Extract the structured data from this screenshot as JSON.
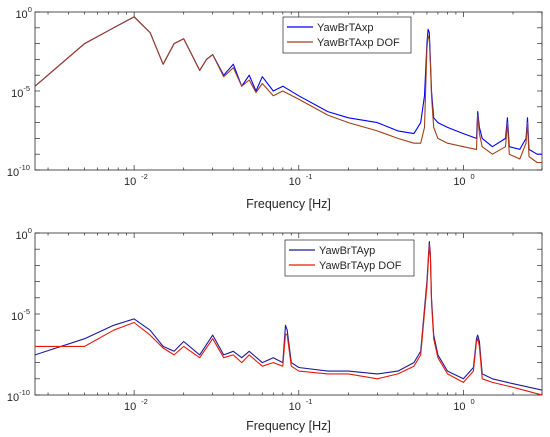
{
  "chart_data": [
    {
      "type": "line",
      "title": "",
      "xlabel": "Frequency [Hz]",
      "ylabel": "",
      "xscale": "log",
      "yscale": "log",
      "xlim": [
        0.0025,
        3
      ],
      "ylim": [
        1e-10,
        1
      ],
      "grid": false,
      "legend": "top-right",
      "x_tick_labels": [
        "10",
        "10",
        "10"
      ],
      "x_tick_exponents": [
        "-2",
        "-1",
        "0"
      ],
      "y_tick_labels": [
        "10",
        "10",
        "10"
      ],
      "y_tick_exponents": [
        "0",
        "-5",
        "-10"
      ],
      "series": [
        {
          "name": "YawBrTAxp",
          "color": "#0000ff",
          "x": [
            0.0025,
            0.005,
            0.0075,
            0.01,
            0.0125,
            0.015,
            0.0175,
            0.02,
            0.025,
            0.0275,
            0.03,
            0.035,
            0.04,
            0.045,
            0.05,
            0.055,
            0.06,
            0.07,
            0.08,
            0.1,
            0.15,
            0.2,
            0.3,
            0.4,
            0.5,
            0.55,
            0.58,
            0.6,
            0.61,
            0.62,
            0.63,
            0.64,
            0.66,
            0.7,
            0.8,
            1.0,
            1.2,
            1.22,
            1.25,
            1.3,
            1.5,
            1.8,
            1.85,
            1.9,
            2.2,
            2.4,
            2.45,
            2.5,
            2.8,
            3.0
          ],
          "y": [
            2e-05,
            0.01,
            0.1,
            0.5,
            0.05,
            0.0005,
            0.01,
            0.02,
            0.0002,
            0.001,
            0.002,
            0.0001,
            0.0005,
            2e-05,
            0.0001,
            1e-05,
            8e-05,
            1e-05,
            2e-05,
            5e-06,
            5e-07,
            2e-07,
            1e-07,
            3e-08,
            2e-08,
            1e-07,
            5e-06,
            0.01,
            0.08,
            0.05,
            0.001,
            1e-05,
            2e-07,
            1e-07,
            5e-08,
            2e-08,
            1e-08,
            5e-07,
            5e-08,
            1e-08,
            3e-09,
            1e-08,
            2e-07,
            3e-09,
            2e-09,
            1e-08,
            2e-07,
            2e-09,
            1e-09,
            1e-09
          ]
        },
        {
          "name": "YawBrTAxp DOF",
          "color": "#a0401a",
          "x": [
            0.0025,
            0.005,
            0.0075,
            0.01,
            0.0125,
            0.015,
            0.0175,
            0.02,
            0.025,
            0.0275,
            0.03,
            0.035,
            0.04,
            0.045,
            0.05,
            0.055,
            0.06,
            0.07,
            0.08,
            0.1,
            0.15,
            0.2,
            0.3,
            0.4,
            0.5,
            0.55,
            0.58,
            0.6,
            0.61,
            0.62,
            0.63,
            0.64,
            0.66,
            0.7,
            0.8,
            1.0,
            1.2,
            1.22,
            1.25,
            1.3,
            1.5,
            1.8,
            1.85,
            1.9,
            2.2,
            2.4,
            2.45,
            2.5,
            2.8,
            3.0
          ],
          "y": [
            2e-05,
            0.01,
            0.1,
            0.5,
            0.05,
            0.0005,
            0.01,
            0.02,
            0.0002,
            0.001,
            0.002,
            8e-05,
            0.0003,
            2e-05,
            5e-05,
            8e-06,
            3e-05,
            5e-06,
            1e-05,
            3e-06,
            3e-07,
            1e-07,
            3e-08,
            1e-08,
            5e-09,
            5e-09,
            5e-08,
            0.005,
            0.03,
            0.02,
            0.0005,
            5e-06,
            5e-08,
            1e-08,
            5e-09,
            3e-09,
            2e-09,
            3e-07,
            2e-08,
            3e-09,
            1e-09,
            3e-09,
            1e-07,
            1e-09,
            5e-10,
            5e-09,
            1e-07,
            7e-10,
            3e-10,
            3e-10
          ]
        }
      ]
    },
    {
      "type": "line",
      "title": "",
      "xlabel": "Frequency [Hz]",
      "ylabel": "",
      "xscale": "log",
      "yscale": "log",
      "xlim": [
        0.0025,
        3
      ],
      "ylim": [
        1e-10,
        1
      ],
      "grid": false,
      "legend": "top-center",
      "x_tick_labels": [
        "10",
        "10",
        "10"
      ],
      "x_tick_exponents": [
        "-2",
        "-1",
        "0"
      ],
      "y_tick_labels": [
        "10",
        "10",
        "10"
      ],
      "y_tick_exponents": [
        "0",
        "-5",
        "-10"
      ],
      "series": [
        {
          "name": "YawBrTAyp",
          "color": "#1a1a9c",
          "x": [
            0.0025,
            0.005,
            0.0075,
            0.01,
            0.0125,
            0.015,
            0.0175,
            0.02,
            0.025,
            0.03,
            0.035,
            0.04,
            0.045,
            0.05,
            0.06,
            0.07,
            0.08,
            0.083,
            0.085,
            0.09,
            0.1,
            0.15,
            0.2,
            0.3,
            0.4,
            0.5,
            0.55,
            0.6,
            0.62,
            0.63,
            0.64,
            0.66,
            0.7,
            0.8,
            1.0,
            1.15,
            1.2,
            1.22,
            1.25,
            1.3,
            1.5,
            2.0,
            3.0
          ],
          "y": [
            3e-08,
            3e-07,
            2e-06,
            5e-06,
            1e-06,
            1e-07,
            5e-08,
            2e-07,
            3e-08,
            5e-07,
            3e-08,
            5e-08,
            2e-08,
            5e-08,
            1e-08,
            2e-08,
            1e-08,
            2e-06,
            1e-06,
            1e-08,
            5e-09,
            3e-09,
            3e-09,
            2e-09,
            3e-09,
            1e-08,
            5e-08,
            0.001,
            0.3,
            0.05,
            0.0001,
            5e-07,
            3e-08,
            3e-09,
            1e-09,
            5e-09,
            3e-07,
            5e-07,
            2e-07,
            2e-09,
            1e-09,
            5e-10,
            2e-10
          ]
        },
        {
          "name": "YawBrTAyp DOF",
          "color": "#e01c0c",
          "x": [
            0.0025,
            0.005,
            0.0075,
            0.01,
            0.0125,
            0.015,
            0.0175,
            0.02,
            0.025,
            0.03,
            0.035,
            0.04,
            0.045,
            0.05,
            0.06,
            0.07,
            0.08,
            0.083,
            0.085,
            0.09,
            0.1,
            0.15,
            0.2,
            0.3,
            0.4,
            0.5,
            0.55,
            0.6,
            0.62,
            0.63,
            0.64,
            0.66,
            0.7,
            0.8,
            1.0,
            1.15,
            1.2,
            1.22,
            1.25,
            1.3,
            1.5,
            2.0,
            3.0
          ],
          "y": [
            1e-07,
            1e-07,
            1e-06,
            3e-06,
            5e-07,
            8e-08,
            3e-08,
            1e-07,
            2e-08,
            3e-07,
            2e-08,
            3e-08,
            1e-08,
            3e-08,
            6e-09,
            1e-08,
            6e-09,
            6e-07,
            5e-07,
            6e-09,
            3e-09,
            2e-09,
            2e-09,
            1e-09,
            2e-09,
            6e-09,
            3e-08,
            0.0005,
            0.2,
            0.03,
            5e-05,
            3e-07,
            2e-08,
            2e-09,
            6e-10,
            3e-09,
            2e-07,
            3e-07,
            1e-07,
            1e-09,
            6e-10,
            3e-10,
            1e-10
          ]
        }
      ]
    }
  ]
}
